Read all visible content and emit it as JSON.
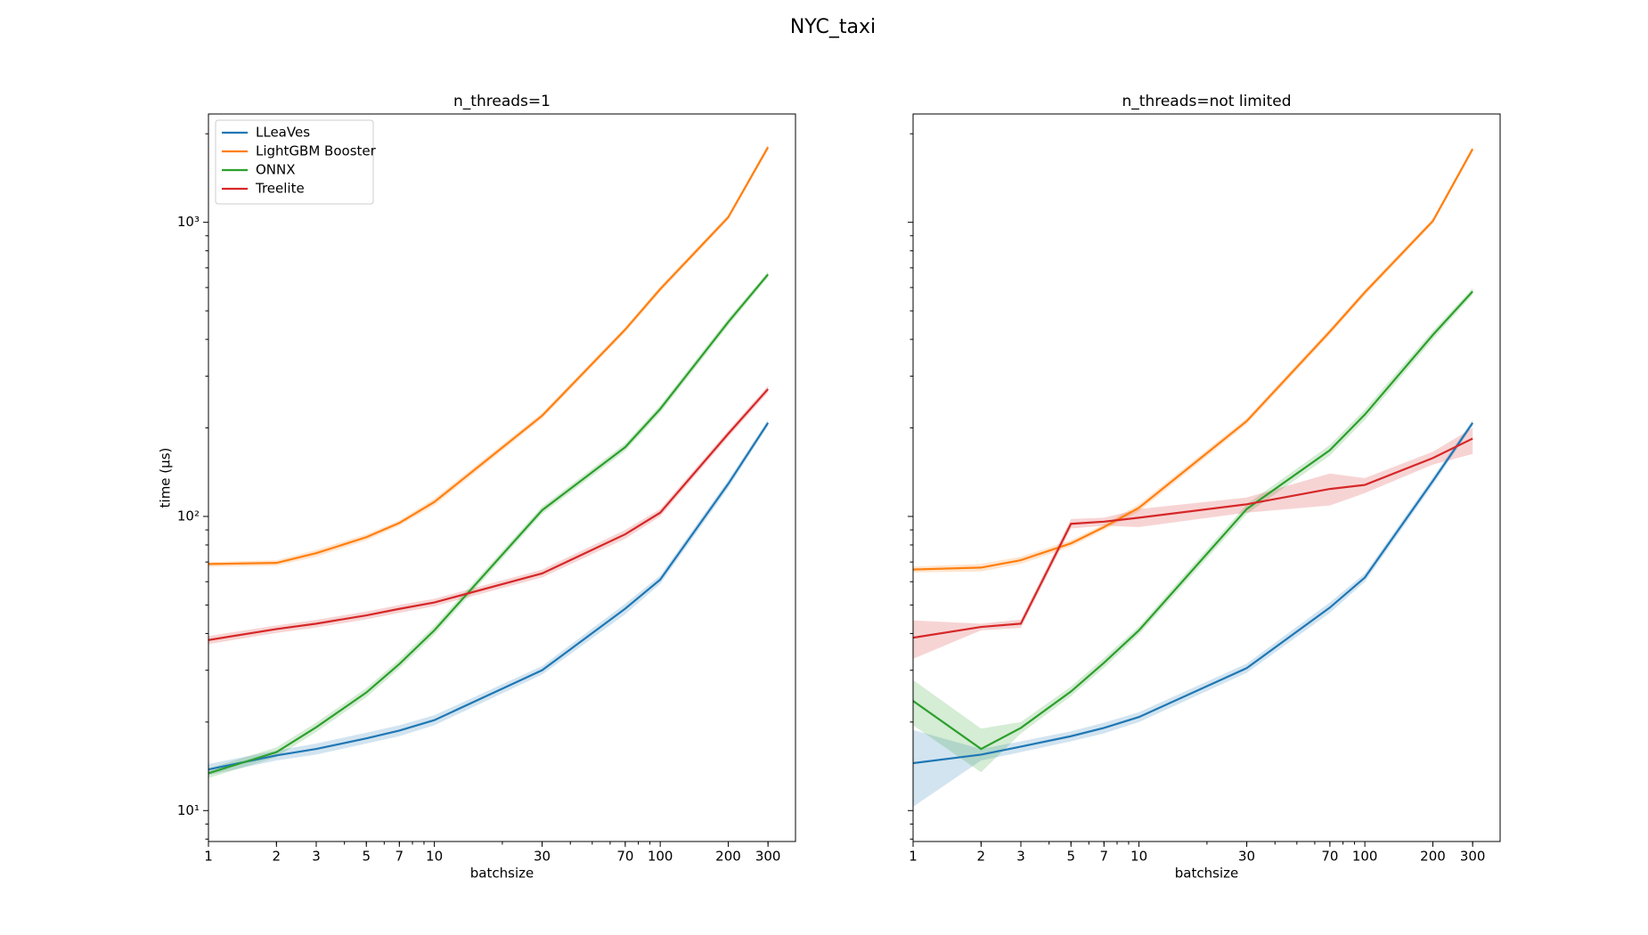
{
  "title": "NYC_taxi",
  "chart_data": [
    {
      "type": "line",
      "title": "n_threads=1",
      "x_label": "batchsize",
      "y_label": "time (µs)",
      "x": [
        1,
        2,
        3,
        5,
        7,
        10,
        30,
        70,
        100,
        200,
        300
      ],
      "xlim": [
        1,
        397
      ],
      "ylim": [
        7.85,
        2335
      ],
      "xscale": "log",
      "yscale": "log",
      "xticks": [
        1,
        2,
        3,
        5,
        7,
        10,
        30,
        70,
        100,
        200,
        300
      ],
      "yticks": [
        {
          "value": 10,
          "label": "10¹"
        },
        {
          "value": 100,
          "label": "10²"
        },
        {
          "value": 1000,
          "label": "10³"
        }
      ],
      "legend": "upper left",
      "series": [
        {
          "name": "LLeaVes",
          "color": "#1f77b4",
          "values": [
            13.8,
            15.4,
            16.2,
            17.6,
            18.7,
            20.3,
            30,
            48.6,
            61,
            129,
            208
          ],
          "lower": [
            13.2,
            14.8,
            15.5,
            16.9,
            17.9,
            19.5,
            29,
            46.5,
            59,
            125,
            203
          ],
          "upper": [
            14.4,
            16,
            16.9,
            18.4,
            19.5,
            21.1,
            31,
            50.5,
            63,
            133,
            213
          ]
        },
        {
          "name": "LightGBM Booster",
          "color": "#ff7f0e",
          "values": [
            68.9,
            69.5,
            75,
            85,
            95,
            112,
            220,
            432,
            593,
            1040,
            1800
          ],
          "lower": [
            67.5,
            68,
            73,
            83,
            93,
            109,
            215,
            423,
            580,
            1020,
            1760
          ],
          "upper": [
            70,
            71,
            77,
            87,
            97,
            115,
            225,
            441,
            606,
            1060,
            1840
          ]
        },
        {
          "name": "ONNX",
          "color": "#2ca02c",
          "values": [
            13.4,
            15.8,
            19.2,
            25.2,
            31.5,
            41,
            105,
            172,
            232,
            458,
            665
          ],
          "lower": [
            12.9,
            15.2,
            18.5,
            24.3,
            30.4,
            39.6,
            102,
            167,
            225,
            445,
            650
          ],
          "upper": [
            13.9,
            16.4,
            19.9,
            26.1,
            32.6,
            42.4,
            108,
            177,
            239,
            471,
            680
          ]
        },
        {
          "name": "Treelite",
          "color": "#d62728",
          "values": [
            38,
            41.4,
            43.2,
            46.1,
            48.5,
            51,
            64,
            87,
            103,
            191,
            271
          ],
          "lower": [
            36.8,
            40.2,
            41.9,
            44.7,
            47,
            49.5,
            62,
            84,
            100,
            186,
            264
          ],
          "upper": [
            39.2,
            42.6,
            44.5,
            47.5,
            50,
            52.5,
            66,
            90,
            106,
            196,
            278
          ]
        }
      ]
    },
    {
      "type": "line",
      "title": "n_threads=not limited",
      "x_label": "batchsize",
      "x": [
        1,
        2,
        3,
        5,
        7,
        10,
        30,
        70,
        100,
        200,
        300
      ],
      "xlim": [
        1,
        397
      ],
      "ylim": [
        7.85,
        2335
      ],
      "xscale": "log",
      "yscale": "log",
      "sharey": true,
      "xticks": [
        1,
        2,
        3,
        5,
        7,
        10,
        30,
        70,
        100,
        200,
        300
      ],
      "yticks": [
        10,
        100,
        1000
      ],
      "series": [
        {
          "color": "#1f77b4",
          "values": [
            14.5,
            15.5,
            16.5,
            17.9,
            19.1,
            20.8,
            30.5,
            49,
            62,
            132,
            208
          ],
          "lower": [
            10.3,
            14.8,
            15.8,
            17.2,
            18.3,
            20,
            29.4,
            47,
            60,
            128,
            203
          ],
          "upper": [
            18.8,
            16.2,
            17.2,
            18.6,
            19.9,
            21.6,
            31.6,
            51,
            64,
            136,
            213
          ]
        },
        {
          "color": "#ff7f0e",
          "values": [
            66,
            67,
            71,
            81,
            92,
            107,
            211,
            425,
            578,
            1010,
            1775
          ],
          "lower": [
            64.5,
            65,
            69,
            79,
            90,
            104,
            206,
            415,
            565,
            990,
            1740
          ],
          "upper": [
            67.5,
            69,
            73,
            83,
            94,
            110,
            216,
            435,
            591,
            1030,
            1810
          ]
        },
        {
          "color": "#2ca02c",
          "values": [
            23.6,
            16.2,
            19.1,
            25.4,
            31.8,
            41,
            106,
            168,
            222,
            414,
            582
          ],
          "lower": [
            19.5,
            13.5,
            18.3,
            24.5,
            30.6,
            39.7,
            102,
            161,
            213,
            400,
            567
          ],
          "upper": [
            27.8,
            19,
            20,
            26.4,
            33,
            42.3,
            110,
            175,
            231,
            428,
            597
          ]
        },
        {
          "color": "#d62728",
          "values": [
            38.7,
            42.1,
            43.2,
            94.4,
            96,
            99,
            110,
            124,
            128,
            158,
            184
          ],
          "lower": [
            32.8,
            41,
            41.8,
            91,
            93,
            92,
            103,
            109,
            120,
            150,
            163
          ],
          "upper": [
            44.3,
            43.2,
            44.6,
            98,
            99,
            106,
            116,
            140,
            135,
            166,
            200
          ]
        }
      ]
    }
  ]
}
